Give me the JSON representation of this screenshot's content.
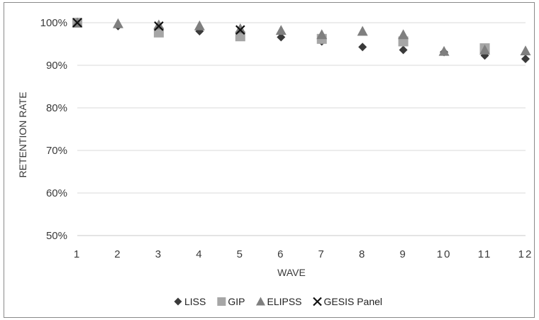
{
  "chart_data": {
    "type": "scatter",
    "title": "",
    "xlabel": "WAVE",
    "ylabel": "RETENTION RATE",
    "x": [
      1,
      2,
      3,
      4,
      5,
      6,
      7,
      8,
      9,
      10,
      11,
      12
    ],
    "x_tick_labels": [
      "1",
      "2",
      "3",
      "4",
      "5",
      "6",
      "7",
      "8",
      "9",
      "10",
      "11",
      "12"
    ],
    "y_tick_labels": [
      "50%",
      "60%",
      "70%",
      "80%",
      "90%",
      "100%"
    ],
    "ylim": [
      50,
      100
    ],
    "y_unit": "%",
    "grid": "horizontal",
    "legend_position": "bottom",
    "series": [
      {
        "name": "LISS",
        "marker": "diamond",
        "color": "#3a3a3a",
        "values": [
          100,
          99.2,
          98.8,
          98.0,
          97.8,
          96.6,
          95.6,
          94.3,
          93.6,
          93.1,
          92.3,
          91.5
        ]
      },
      {
        "name": "GIP",
        "marker": "square",
        "color": "#a6a6a6",
        "values": [
          100,
          null,
          97.7,
          null,
          96.8,
          null,
          96.2,
          null,
          95.6,
          null,
          94.0,
          null
        ]
      },
      {
        "name": "ELIPSS",
        "marker": "triangle",
        "color": "#7f7f7f",
        "values": [
          100,
          99.8,
          99.5,
          99.3,
          98.6,
          98.2,
          97.2,
          98.0,
          97.2,
          93.3,
          93.6,
          93.4
        ]
      },
      {
        "name": "GESIS Panel",
        "marker": "x",
        "color": "#111111",
        "values": [
          100,
          null,
          99.2,
          null,
          98.3,
          null,
          null,
          null,
          null,
          null,
          null,
          null
        ]
      }
    ]
  }
}
